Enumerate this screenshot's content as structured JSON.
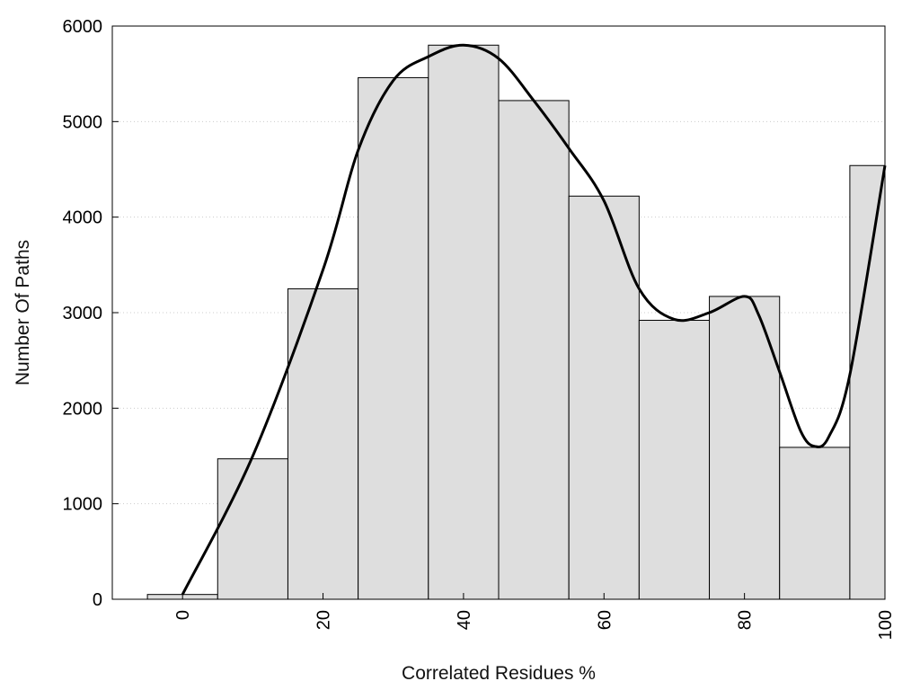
{
  "chart_data": {
    "type": "bar",
    "title": "",
    "xlabel": "Correlated Residues %",
    "ylabel": "Number Of Paths",
    "xlim": [
      -10,
      100
    ],
    "ylim": [
      0,
      6000
    ],
    "x_ticks": [
      0,
      20,
      40,
      60,
      80,
      100
    ],
    "y_ticks": [
      0,
      1000,
      2000,
      3000,
      4000,
      5000,
      6000
    ],
    "grid": "horizontal dotted",
    "legend": "none",
    "bin_width": 10,
    "categories": [
      0,
      10,
      20,
      30,
      40,
      50,
      60,
      70,
      80,
      90,
      100
    ],
    "values": [
      50,
      1470,
      3250,
      5460,
      5800,
      5220,
      4220,
      2920,
      3170,
      1590,
      4540
    ],
    "curve": {
      "type": "line",
      "x": [
        0,
        10,
        20,
        25,
        30,
        35,
        40,
        45,
        50,
        55,
        60,
        65,
        70,
        75,
        80,
        82,
        85,
        88,
        90,
        92,
        95,
        100
      ],
      "y": [
        50,
        1500,
        3450,
        4700,
        5430,
        5680,
        5800,
        5660,
        5220,
        4720,
        4170,
        3250,
        2930,
        3000,
        3170,
        2980,
        2380,
        1760,
        1600,
        1700,
        2350,
        4540
      ]
    },
    "colors": {
      "bar_fill": "#dedede",
      "bar_stroke": "#000000",
      "curve": "#000000",
      "grid": "#cccccc"
    }
  }
}
